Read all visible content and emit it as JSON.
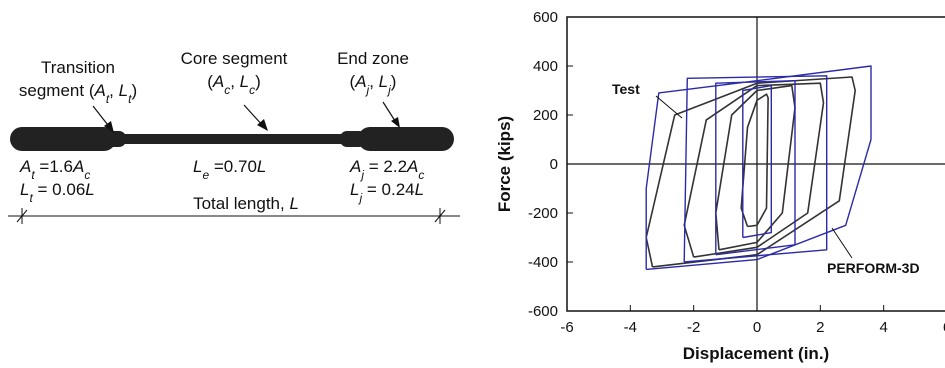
{
  "diagram": {
    "transition_label": {
      "line1": "Transition",
      "line2_prefix": "segment (",
      "A": "A",
      "A_sub": "t",
      "sep": ", ",
      "L": "L",
      "L_sub": "t",
      "close": ")"
    },
    "core_label": {
      "line1": "Core segment",
      "open": "(",
      "A": "A",
      "A_sub": "c",
      "sep": ", ",
      "L": "L",
      "L_sub": "c",
      "close": ")"
    },
    "end_label": {
      "line1": "End zone",
      "open": "(",
      "A": "A",
      "A_sub": "j",
      "sep": ", ",
      "L": "L",
      "L_sub": "j",
      "close": ")"
    },
    "transition_area": {
      "A": "A",
      "A_sub": "t",
      "eq": " =1.6",
      "rhs": "A",
      "rhs_sub": "c"
    },
    "transition_length": {
      "L": "L",
      "L_sub": "t",
      "eq": " = 0.06",
      "rhs": "L"
    },
    "core_length": {
      "L": "L",
      "L_sub": "e",
      "eq": " =0.70",
      "rhs": "L"
    },
    "end_area": {
      "A": "A",
      "A_sub": "j",
      "eq": " = 2.2",
      "rhs": "A",
      "rhs_sub": "c"
    },
    "end_length": {
      "L": "L",
      "L_sub": "j",
      "eq": " = 0.24",
      "rhs": "L"
    },
    "total_length": {
      "text": "Total length, ",
      "L": "L"
    }
  },
  "chart_data": {
    "type": "line",
    "xlabel": "Displacement (in.)",
    "ylabel": "Force (kips)",
    "xlim": [
      -6,
      6
    ],
    "ylim": [
      -600,
      600
    ],
    "xticks": [
      -6,
      -4,
      -2,
      0,
      2,
      4,
      6
    ],
    "yticks": [
      -600,
      -400,
      -200,
      0,
      200,
      400,
      600
    ],
    "xtick_labels": [
      "-6",
      "-4",
      "-2",
      "0",
      "2",
      "4",
      "6"
    ],
    "ytick_labels": [
      "-600",
      "-400",
      "-200",
      "0",
      "200",
      "400",
      "600"
    ],
    "annotations": [
      "Test",
      "PERFORM-3D"
    ],
    "colors": {
      "test": "#333333",
      "perform": "#2b2ba8"
    },
    "series": [
      {
        "key": "test",
        "loops": [
          [
            [
              -0.3,
              -255
            ],
            [
              -0.5,
              -180
            ],
            [
              -0.3,
              150
            ],
            [
              0,
              260
            ],
            [
              0.3,
              285
            ],
            [
              0.35,
              270
            ],
            [
              0.3,
              -180
            ],
            [
              0,
              -250
            ],
            [
              -0.3,
              -255
            ]
          ],
          [
            [
              -1.2,
              -350
            ],
            [
              -1.3,
              -200
            ],
            [
              -0.8,
              200
            ],
            [
              0,
              300
            ],
            [
              1.1,
              320
            ],
            [
              1.2,
              230
            ],
            [
              0.8,
              -200
            ],
            [
              0,
              -320
            ],
            [
              -1.2,
              -350
            ]
          ],
          [
            [
              -2.0,
              -380
            ],
            [
              -2.3,
              -250
            ],
            [
              -1.6,
              180
            ],
            [
              0,
              320
            ],
            [
              2.0,
              330
            ],
            [
              2.1,
              250
            ],
            [
              1.6,
              -200
            ],
            [
              0,
              -340
            ],
            [
              -2.0,
              -380
            ]
          ],
          [
            [
              -3.3,
              -420
            ],
            [
              -3.5,
              -300
            ],
            [
              -2.6,
              200
            ],
            [
              0,
              330
            ],
            [
              3.0,
              355
            ],
            [
              3.1,
              300
            ],
            [
              2.6,
              -150
            ],
            [
              0,
              -370
            ],
            [
              -3.3,
              -420
            ]
          ]
        ]
      },
      {
        "key": "perform",
        "loops": [
          [
            [
              -0.45,
              -300
            ],
            [
              -0.45,
              300
            ],
            [
              0.45,
              320
            ],
            [
              0.45,
              -280
            ],
            [
              -0.45,
              -300
            ]
          ],
          [
            [
              -1.3,
              -370
            ],
            [
              -1.3,
              330
            ],
            [
              1.2,
              340
            ],
            [
              1.2,
              -330
            ],
            [
              -1.3,
              -370
            ]
          ],
          [
            [
              -2.3,
              -400
            ],
            [
              -2.2,
              350
            ],
            [
              2.2,
              360
            ],
            [
              2.2,
              -350
            ],
            [
              -2.3,
              -400
            ]
          ],
          [
            [
              -3.5,
              -430
            ],
            [
              -3.5,
              -100
            ],
            [
              -3.1,
              290
            ],
            [
              0,
              340
            ],
            [
              3.6,
              400
            ],
            [
              3.6,
              100
            ],
            [
              2.8,
              -250
            ],
            [
              0,
              -390
            ],
            [
              -3.5,
              -430
            ]
          ]
        ]
      }
    ]
  }
}
